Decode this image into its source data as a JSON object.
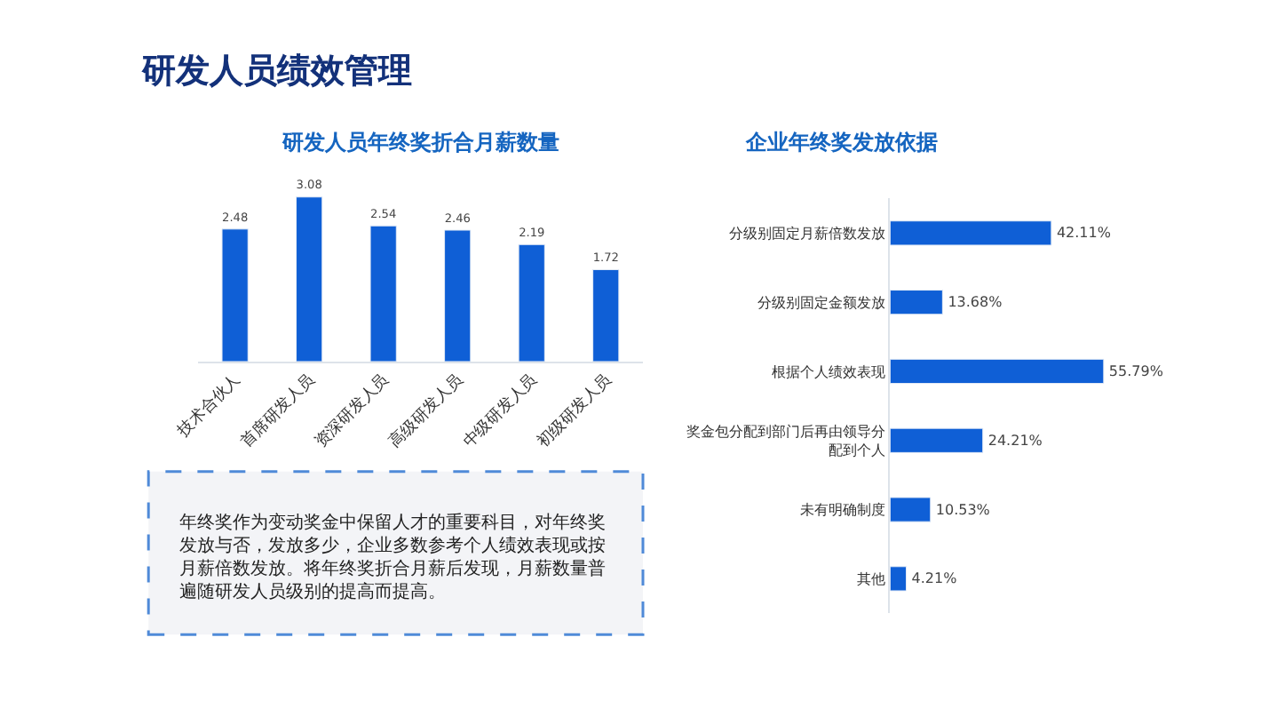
{
  "chart_data": [
    {
      "type": "bar",
      "title": "研发人员年终奖折合月薪数量",
      "categories": [
        "技术合伙人",
        "首席研发人员",
        "资深研发人员",
        "高级研发人员",
        "中级研发人员",
        "初级研发人员"
      ],
      "values": [
        2.48,
        3.08,
        2.54,
        2.46,
        2.19,
        1.72
      ],
      "color": "#0f5fd6",
      "data_labels": true,
      "tick_labels": "x",
      "annotations": [
        "研发人员绩效管理",
        "年终奖作为变动奖金中保留人才的重要科目，对年终奖发放与否，发放多少，企业多数参考个人绩效表现或按月薪倍数发放。将年终奖折合月薪后发现，月薪数量普遍随研发人员级别的提高而提高。"
      ]
    },
    {
      "type": "bar",
      "orientation": "horizontal",
      "title": "企业年终奖发放依据",
      "categories": [
        "分级别固定月薪倍数发放",
        "分级别固定金额发放",
        "根据个人绩效表现",
        "奖金包分配到部门后再由领导分配到个人",
        "未有明确制度",
        "其他"
      ],
      "values": [
        42.11,
        13.68,
        55.79,
        24.21,
        10.53,
        4.21
      ],
      "value_labels": [
        "42.11%",
        "13.68%",
        "55.79%",
        "24.21%",
        "10.53%",
        "4.21%"
      ],
      "color": "#0f5fd6",
      "tick_labels": "y"
    }
  ]
}
